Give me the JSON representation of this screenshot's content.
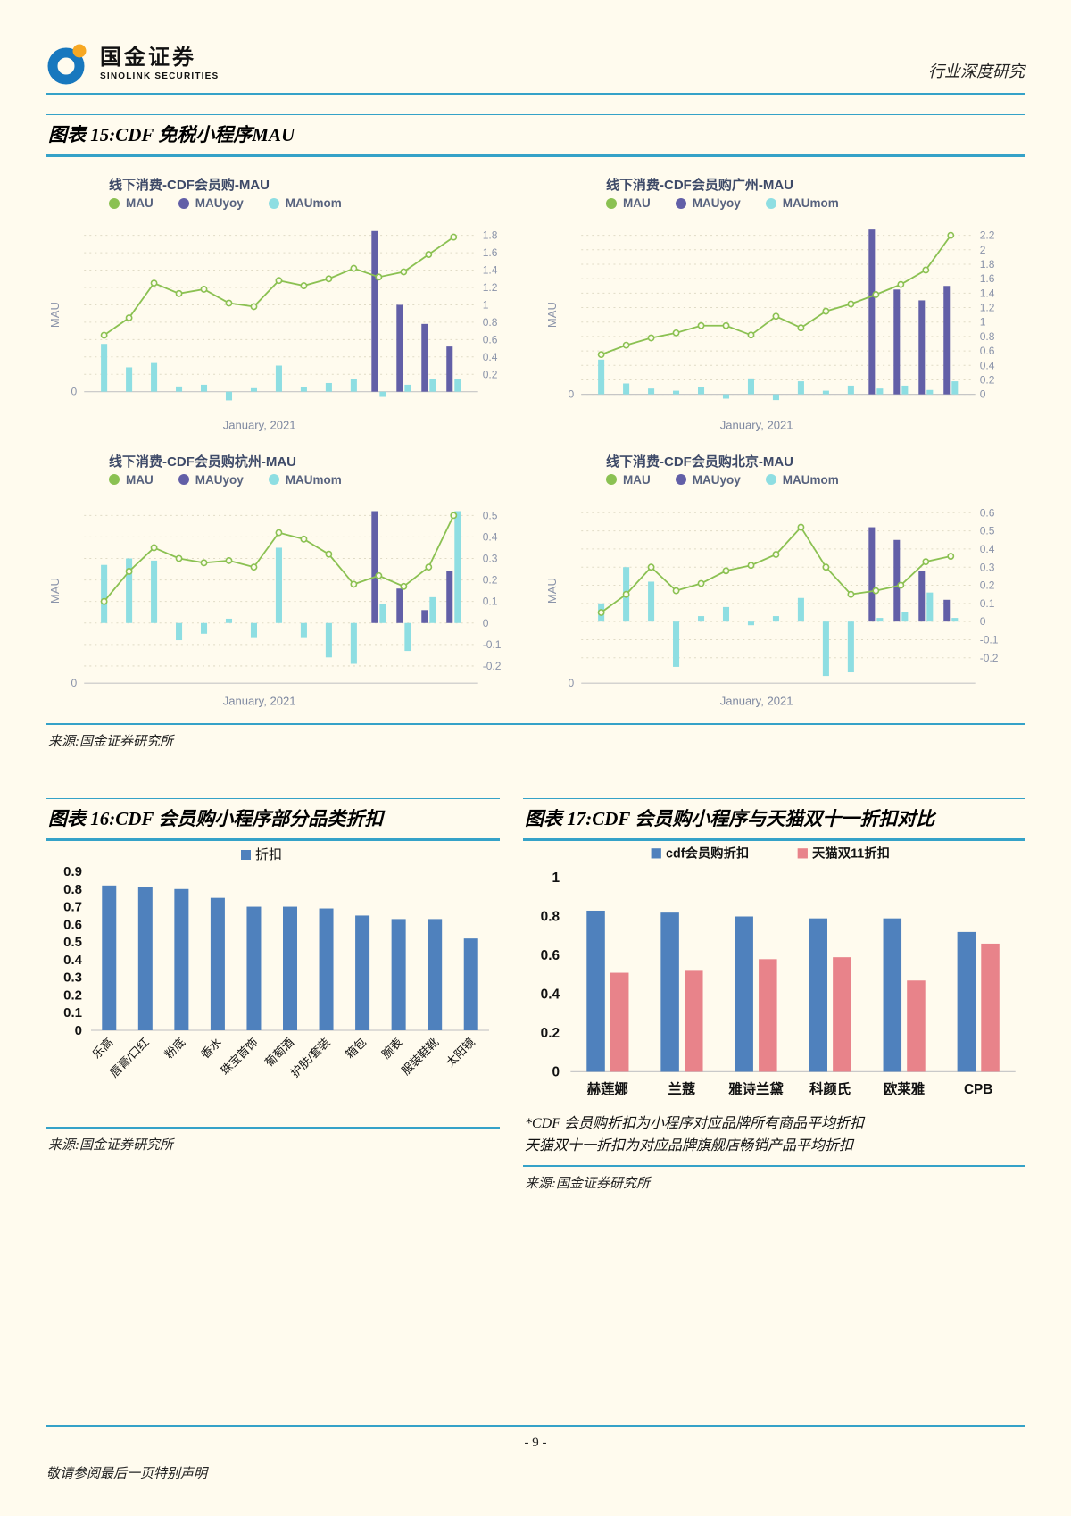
{
  "header": {
    "brand_name": "国金证券",
    "brand_sub": "SINOLINK SECURITIES",
    "doc_type": "行业深度研究"
  },
  "figure15": {
    "title": "图表 15:CDF 免税小程序MAU",
    "source": "来源:国金证券研究所"
  },
  "figure16": {
    "title": "图表 16:CDF 会员购小程序部分品类折扣",
    "source": "来源:国金证券研究所"
  },
  "figure17": {
    "title": "图表 17:CDF 会员购小程序与天猫双十一折扣对比",
    "footnotes": [
      "*CDF 会员购折扣为小程序对应品牌所有商品平均折扣",
      "天猫双十一折扣为对应品牌旗舰店畅销产品平均折扣"
    ],
    "source": "来源:国金证券研究所"
  },
  "footer": {
    "page_number": "- 9 -",
    "disclaimer": "敬请参阅最后一页特别声明"
  },
  "chart_data": [
    {
      "id": "mau-total",
      "type": "line+bar",
      "title": "线下消费-CDF会员购-MAU",
      "ylabel": "MAU",
      "x_label": "January, 2021",
      "legend": [
        {
          "name": "MAU",
          "color": "#8bc152"
        },
        {
          "name": "MAUyoy",
          "color": "#625fa7"
        },
        {
          "name": "MAUmom",
          "color": "#8edee2"
        }
      ],
      "axis": "zero",
      "ylim": [
        -0.18,
        1.95
      ],
      "yticks": [
        1.8,
        1.6,
        1.4,
        1.2,
        1,
        0.8,
        0.6,
        0.4,
        0.2
      ],
      "mau": [
        0.65,
        0.85,
        1.25,
        1.13,
        1.18,
        1.02,
        0.98,
        1.28,
        1.22,
        1.3,
        1.42,
        1.32,
        1.38,
        1.58,
        1.78
      ],
      "yoy": [
        null,
        null,
        null,
        null,
        null,
        null,
        null,
        null,
        null,
        null,
        null,
        1.85,
        1.0,
        0.78,
        0.52
      ],
      "mom": [
        0.55,
        0.28,
        0.33,
        0.06,
        0.08,
        -0.1,
        0.04,
        0.3,
        0.05,
        0.1,
        0.15,
        -0.06,
        0.08,
        0.15,
        0.15
      ]
    },
    {
      "id": "mau-guangzhou",
      "type": "line+bar",
      "title": "线下消费-CDF会员购广州-MAU",
      "ylabel": "MAU",
      "x_label": "January, 2021",
      "legend": [
        {
          "name": "MAU",
          "color": "#8bc152"
        },
        {
          "name": "MAUyoy",
          "color": "#625fa7"
        },
        {
          "name": "MAUmom",
          "color": "#8edee2"
        }
      ],
      "axis": "zero",
      "ylim": [
        -0.18,
        2.38
      ],
      "yticks": [
        2.2,
        2,
        1.8,
        1.6,
        1.4,
        1.2,
        1,
        0.8,
        0.6,
        0.4,
        0.2,
        0
      ],
      "mau": [
        0.55,
        0.68,
        0.78,
        0.85,
        0.95,
        0.95,
        0.82,
        1.08,
        0.92,
        1.15,
        1.25,
        1.38,
        1.52,
        1.72,
        2.2
      ],
      "yoy": [
        null,
        null,
        null,
        null,
        null,
        null,
        null,
        null,
        null,
        null,
        null,
        2.28,
        1.45,
        1.3,
        1.5
      ],
      "mom": [
        0.48,
        0.15,
        0.08,
        0.05,
        0.1,
        -0.06,
        0.22,
        -0.08,
        0.18,
        0.05,
        0.12,
        0.08,
        0.12,
        0.06,
        0.18
      ]
    },
    {
      "id": "mau-hangzhou",
      "type": "line+bar",
      "title": "线下消费-CDF会员购杭州-MAU",
      "ylabel": "MAU",
      "x_label": "January, 2021",
      "legend": [
        {
          "name": "MAU",
          "color": "#8bc152"
        },
        {
          "name": "MAUyoy",
          "color": "#625fa7"
        },
        {
          "name": "MAUmom",
          "color": "#8edee2"
        }
      ],
      "axis": "bottom",
      "ylim": [
        -0.28,
        0.58
      ],
      "yticks": [
        0.5,
        0.4,
        0.3,
        0.2,
        0.1,
        0,
        -0.1,
        -0.2
      ],
      "mau": [
        0.1,
        0.24,
        0.35,
        0.3,
        0.28,
        0.29,
        0.26,
        0.42,
        0.39,
        0.32,
        0.18,
        0.22,
        0.17,
        0.26,
        0.5
      ],
      "yoy": [
        null,
        null,
        null,
        null,
        null,
        null,
        null,
        null,
        null,
        null,
        null,
        0.52,
        0.16,
        0.06,
        0.24
      ],
      "mom": [
        0.27,
        0.3,
        0.29,
        -0.08,
        -0.05,
        0.02,
        -0.07,
        0.35,
        -0.07,
        -0.16,
        -0.19,
        0.09,
        -0.13,
        0.12,
        0.52
      ]
    },
    {
      "id": "mau-beijing",
      "type": "line+bar",
      "title": "线下消费-CDF会员购北京-MAU",
      "ylabel": "MAU",
      "x_label": "January, 2021",
      "legend": [
        {
          "name": "MAU",
          "color": "#8bc152"
        },
        {
          "name": "MAUyoy",
          "color": "#625fa7"
        },
        {
          "name": "MAUmom",
          "color": "#8edee2"
        }
      ],
      "axis": "bottom",
      "ylim": [
        -0.34,
        0.68
      ],
      "yticks": [
        0.6,
        0.5,
        0.4,
        0.3,
        0.2,
        0.1,
        0,
        -0.1,
        -0.2
      ],
      "mau": [
        0.05,
        0.15,
        0.3,
        0.17,
        0.21,
        0.28,
        0.31,
        0.37,
        0.52,
        0.3,
        0.15,
        0.17,
        0.2,
        0.33,
        0.36
      ],
      "yoy": [
        null,
        null,
        null,
        null,
        null,
        null,
        null,
        null,
        null,
        null,
        null,
        0.52,
        0.45,
        0.28,
        0.12
      ],
      "mom": [
        0.1,
        0.3,
        0.22,
        -0.25,
        0.03,
        0.08,
        -0.02,
        0.03,
        0.13,
        -0.3,
        -0.28,
        0.02,
        0.05,
        0.16,
        0.02
      ]
    },
    {
      "id": "discount-by-category",
      "type": "bar",
      "title": "图表 16:CDF 会员购小程序部分品类折扣",
      "legend": [
        {
          "name": "折扣",
          "color": "#4f81bd"
        }
      ],
      "categories": [
        "乐高",
        "唇膏/口红",
        "粉底",
        "香水",
        "珠宝首饰",
        "葡萄酒",
        "护肤/套装",
        "箱包",
        "腕表",
        "服装鞋靴",
        "太阳镜"
      ],
      "values": [
        0.82,
        0.81,
        0.8,
        0.75,
        0.7,
        0.7,
        0.69,
        0.65,
        0.63,
        0.63,
        0.52
      ],
      "ylim": [
        0,
        0.9
      ],
      "yticks": [
        0.9,
        0.8,
        0.7,
        0.6,
        0.5,
        0.4,
        0.3,
        0.2,
        0.1,
        0
      ]
    },
    {
      "id": "discount-vs-tmall",
      "type": "grouped-bar",
      "title": "图表 17:CDF 会员购小程序与天猫双十一折扣对比",
      "categories": [
        "赫莲娜",
        "兰蔻",
        "雅诗兰黛",
        "科颜氏",
        "欧莱雅",
        "CPB"
      ],
      "series": [
        {
          "name": "cdf会员购折扣",
          "color": "#4f81bd",
          "values": [
            0.83,
            0.82,
            0.8,
            0.79,
            0.79,
            0.72
          ]
        },
        {
          "name": "天猫双11折扣",
          "color": "#e8838a",
          "values": [
            0.51,
            0.52,
            0.58,
            0.59,
            0.47,
            0.66
          ]
        }
      ],
      "ylim": [
        0,
        1
      ],
      "yticks": [
        1,
        0.8,
        0.6,
        0.4,
        0.2,
        0
      ]
    }
  ]
}
